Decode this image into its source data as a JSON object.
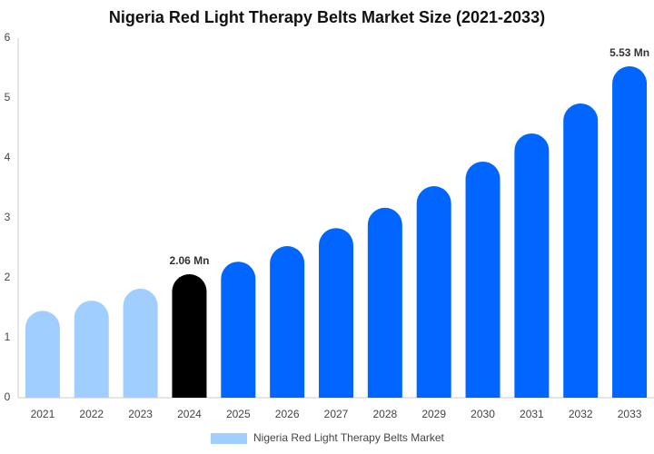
{
  "chart_data": {
    "type": "bar",
    "title": "Nigeria Red Light Therapy Belts Market Size (2021-2033)",
    "categories": [
      "2021",
      "2022",
      "2023",
      "2024",
      "2025",
      "2026",
      "2027",
      "2028",
      "2029",
      "2030",
      "2031",
      "2032",
      "2033"
    ],
    "series": [
      {
        "name": "Nigeria Red Light Therapy Belts Market",
        "color": "#a0cfff",
        "values": [
          1.45,
          1.62,
          1.82,
          2.06,
          2.27,
          2.53,
          2.83,
          3.17,
          3.53,
          3.94,
          4.41,
          4.91,
          5.53
        ],
        "value_labels": [
          null,
          null,
          null,
          "2.06 Mn",
          null,
          null,
          null,
          null,
          null,
          null,
          null,
          null,
          "5.53 Mn"
        ],
        "bar_colors": [
          "#a0cfff",
          "#a0cfff",
          "#a0cfff",
          "#000000",
          "#0066ff",
          "#0066ff",
          "#0066ff",
          "#0066ff",
          "#0066ff",
          "#0066ff",
          "#0066ff",
          "#0066ff",
          "#0066ff"
        ]
      }
    ],
    "ylim": [
      0,
      6
    ],
    "yticks": [
      0,
      1,
      2,
      3,
      4,
      5,
      6
    ],
    "grid": false,
    "legend": "bottom"
  }
}
